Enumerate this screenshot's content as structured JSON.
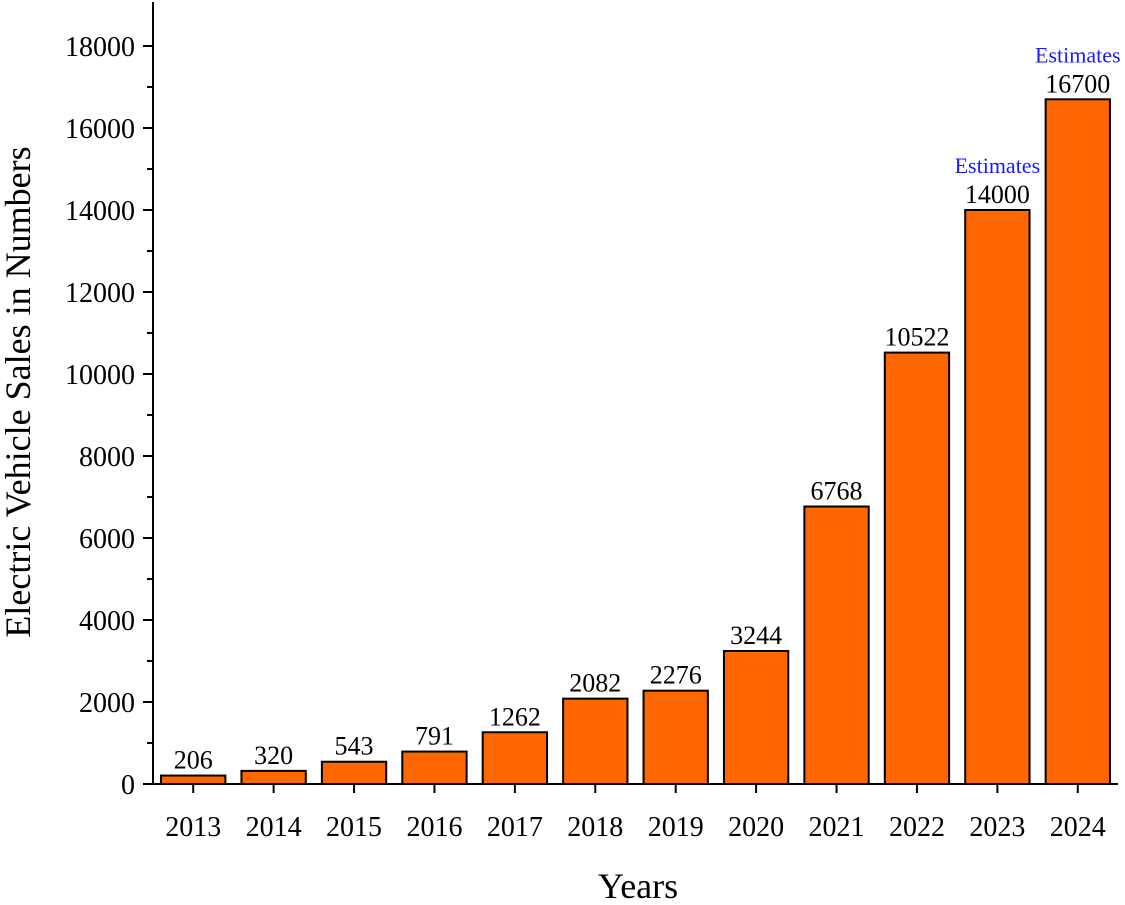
{
  "chart_data": {
    "type": "bar",
    "title": "",
    "xlabel": "Years",
    "ylabel": "Electric Vehicle Sales in Numbers",
    "categories": [
      "2013",
      "2014",
      "2015",
      "2016",
      "2017",
      "2018",
      "2019",
      "2020",
      "2021",
      "2022",
      "2023",
      "2024"
    ],
    "values": [
      206,
      320,
      543,
      791,
      1262,
      2082,
      2276,
      3244,
      6768,
      10522,
      14000,
      16700
    ],
    "data_labels": [
      "206",
      "320",
      "543",
      "791",
      "1262",
      "2082",
      "2276",
      "3244",
      "6768",
      "10522",
      "14000",
      "16700"
    ],
    "annotations": [
      {
        "category": "2023",
        "text": "Estimates"
      },
      {
        "category": "2024",
        "text": "Estimates"
      }
    ],
    "ylim": [
      0,
      19000
    ],
    "yticks": [
      0,
      2000,
      4000,
      6000,
      8000,
      10000,
      12000,
      14000,
      16000,
      18000
    ],
    "ytick_labels": [
      "0",
      "2000",
      "4000",
      "6000",
      "8000",
      "10000",
      "12000",
      "14000",
      "16000",
      "18000"
    ],
    "grid": false,
    "legend": "none",
    "colors": {
      "bar_fill": "#ff6600",
      "bar_stroke": "#000000",
      "annotation": "#1a1aff",
      "axis": "#000000"
    }
  }
}
